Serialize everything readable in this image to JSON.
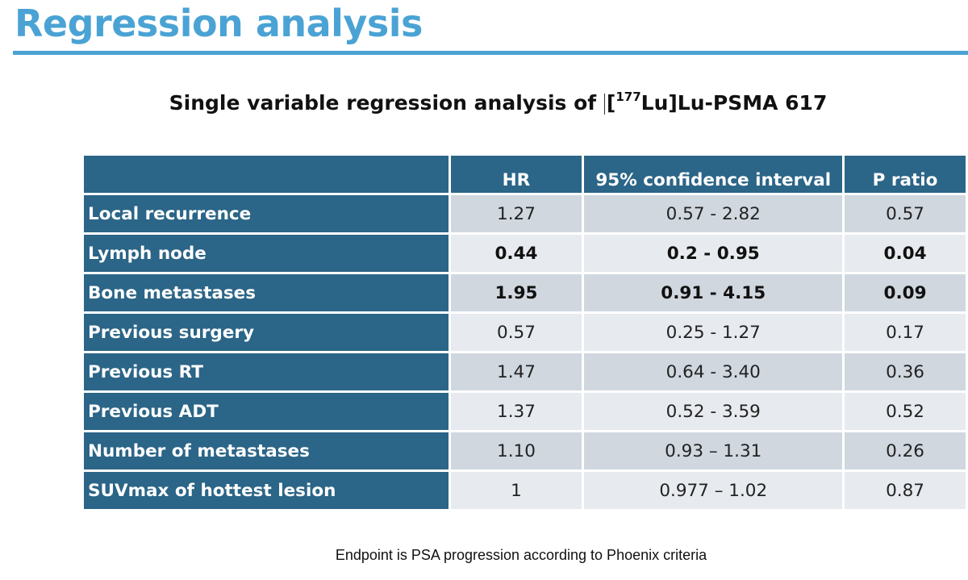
{
  "slide": {
    "title": "Regression analysis",
    "footnote": "Endpoint is PSA progression according to Phoenix criteria"
  },
  "table": {
    "caption_prefix": "Single variable regression analysis of ",
    "caption_isotope_open": "[",
    "caption_isotope_mass": "177",
    "caption_suffix": "Lu]Lu-PSMA 617",
    "headers": [
      "",
      "HR",
      "95% confidence interval",
      "P ratio"
    ],
    "rows": [
      {
        "label": "Local recurrence",
        "hr": "1.27",
        "ci": "0.57 - 2.82",
        "p": "0.57",
        "bold": false
      },
      {
        "label": "Lymph node",
        "hr": "0.44",
        "ci": "0.2 - 0.95",
        "p": "0.04",
        "bold": true
      },
      {
        "label": "Bone metastases",
        "hr": "1.95",
        "ci": "0.91 - 4.15",
        "p": "0.09",
        "bold": true
      },
      {
        "label": "Previous surgery",
        "hr": "0.57",
        "ci": "0.25 - 1.27",
        "p": "0.17",
        "bold": false
      },
      {
        "label": "Previous RT",
        "hr": "1.47",
        "ci": "0.64 - 3.40",
        "p": "0.36",
        "bold": false
      },
      {
        "label": "Previous ADT",
        "hr": "1.37",
        "ci": "0.52 - 3.59",
        "p": "0.52",
        "bold": false
      },
      {
        "label": "Number of metastases",
        "hr": "1.10",
        "ci": "0.93 – 1.31",
        "p": "0.26",
        "bold": false
      },
      {
        "label": "SUVmax of hottest lesion",
        "hr": "1",
        "ci": "0.977 – 1.02",
        "p": "0.87",
        "bold": false
      }
    ]
  },
  "colors": {
    "title": "#4aa3d4",
    "header_fill": "#2b6587",
    "row_fill_dark": "#d0d7df",
    "row_fill_light": "#e7eaee"
  }
}
